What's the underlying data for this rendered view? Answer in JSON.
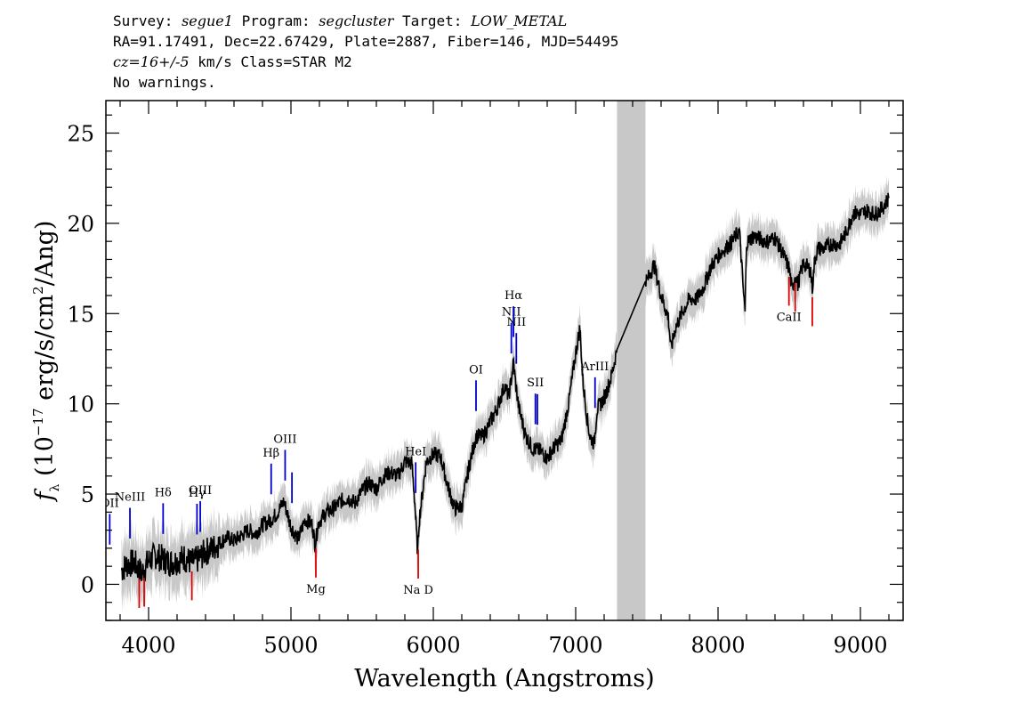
{
  "header": {
    "survey_label": "Survey:",
    "survey": "segue1",
    "program_label": "Program:",
    "program": "segcluster",
    "target_label": "Target:",
    "target": "LOW_METAL",
    "line2": "RA=91.17491, Dec=22.67429, Plate=2887, Fiber=146, MJD=54495",
    "cz": "cz=16+/-5",
    "cz_units": "km/s Class=STAR M2",
    "line4": "No warnings."
  },
  "chart_data": {
    "type": "line",
    "xlabel": "Wavelength (Angstroms)",
    "ylabel": "f_λ (10^-17 erg/s/cm^2/Ang)",
    "xlim": [
      3700,
      9300
    ],
    "ylim": [
      -2,
      26.8
    ],
    "xticks": [
      4000,
      5000,
      6000,
      7000,
      8000,
      9000
    ],
    "yticks": [
      0,
      5,
      10,
      15,
      20,
      25
    ],
    "grid": false,
    "masked_region": [
      7290,
      7490
    ],
    "colors": {
      "flux": "#000000",
      "error_band": "#c8c8c8",
      "emission": "#0000cc",
      "absorption": "#dd0000"
    },
    "series": [
      {
        "style": "flux",
        "x": [
          3810,
          3850,
          3900,
          3950,
          4000,
          4050,
          4100,
          4150,
          4200,
          4250,
          4300,
          4350,
          4400,
          4450,
          4500,
          4550,
          4600,
          4650,
          4700,
          4750,
          4800,
          4850,
          4900,
          4950,
          5000,
          5050,
          5100,
          5150,
          5170,
          5190,
          5200,
          5250,
          5300,
          5350,
          5400,
          5450,
          5500,
          5550,
          5600,
          5650,
          5700,
          5750,
          5800,
          5850,
          5870,
          5890,
          5900,
          5950,
          6000,
          6050,
          6100,
          6150,
          6200,
          6250,
          6300,
          6350,
          6400,
          6450,
          6500,
          6530,
          6550,
          6563,
          6580,
          6600,
          6650,
          6700,
          6750,
          6800,
          6850,
          6900,
          6950,
          7000,
          7030,
          7050,
          7080,
          7100,
          7130,
          7150,
          7200,
          7250,
          7290,
          7490,
          7500,
          7550,
          7600,
          7650,
          7670,
          7700,
          7750,
          7800,
          7850,
          7900,
          7950,
          8000,
          8050,
          8100,
          8150,
          8180,
          8190,
          8200,
          8250,
          8300,
          8350,
          8400,
          8450,
          8500,
          8520,
          8542,
          8560,
          8600,
          8650,
          8662,
          8680,
          8700,
          8750,
          8800,
          8850,
          8900,
          8950,
          9000,
          9050,
          9100,
          9150,
          9200
        ],
        "y": [
          0.8,
          1.1,
          1.2,
          0.6,
          1.3,
          1.6,
          1.4,
          1.2,
          1.3,
          1.5,
          1.2,
          1.4,
          1.8,
          2.0,
          2.3,
          2.6,
          2.4,
          2.7,
          3.0,
          2.8,
          3.3,
          3.5,
          3.9,
          4.6,
          3.2,
          2.5,
          3.6,
          3.3,
          2.2,
          3.3,
          3.5,
          4.0,
          4.2,
          4.6,
          4.8,
          4.5,
          5.2,
          5.6,
          5.3,
          6.0,
          6.2,
          6.0,
          6.8,
          6.7,
          4.5,
          1.7,
          3.5,
          6.8,
          7.2,
          7.1,
          5.5,
          4.2,
          4.3,
          6.5,
          8.2,
          8.2,
          9.0,
          9.8,
          11.0,
          10.4,
          11.5,
          12.3,
          11.0,
          9.8,
          8.2,
          7.5,
          7.4,
          7.0,
          7.6,
          8.0,
          10.0,
          12.8,
          14.2,
          11.3,
          9.2,
          8.2,
          7.8,
          9.7,
          10.3,
          11.5,
          13.0,
          17.0,
          16.8,
          17.7,
          16.0,
          14.8,
          13.0,
          14.2,
          15.1,
          15.8,
          15.8,
          16.5,
          17.6,
          18.2,
          18.6,
          19.0,
          19.6,
          16.0,
          15.1,
          18.9,
          19.3,
          19.1,
          19.0,
          19.2,
          18.4,
          17.5,
          16.3,
          17.2,
          16.6,
          17.8,
          17.4,
          16.4,
          18.0,
          18.6,
          18.6,
          18.9,
          18.8,
          19.5,
          20.6,
          20.5,
          20.7,
          20.5,
          20.8,
          21.4
        ]
      }
    ],
    "emission_lines": [
      {
        "label": "OII",
        "wl": 3727
      },
      {
        "label": "NeIII",
        "wl": 3869
      },
      {
        "label": "Hδ",
        "wl": 4102
      },
      {
        "label": "Hγ",
        "wl": 4340
      },
      {
        "label": "OIII",
        "wl": 4363
      },
      {
        "label": "Hβ",
        "wl": 4861
      },
      {
        "label": "OIII",
        "wl": 4959
      },
      {
        "label": "",
        "wl": 5007
      },
      {
        "label": "HeI",
        "wl": 5876
      },
      {
        "label": "OI",
        "wl": 6300
      },
      {
        "label": "NII",
        "wl": 6548
      },
      {
        "label": "Hα",
        "wl": 6563
      },
      {
        "label": "NII",
        "wl": 6583
      },
      {
        "label": "SII",
        "wl": 6717
      },
      {
        "label": "",
        "wl": 6731
      },
      {
        "label": "ArIII",
        "wl": 7136
      }
    ],
    "absorption_lines": [
      {
        "label": "",
        "wl": 3934
      },
      {
        "label": "",
        "wl": 3969
      },
      {
        "label": "",
        "wl": 4304
      },
      {
        "label": "Mg",
        "wl": 5175
      },
      {
        "label": "Na D",
        "wl": 5894
      },
      {
        "label": "CaII",
        "wl": 8498
      },
      {
        "label": "",
        "wl": 8542
      },
      {
        "label": "",
        "wl": 8662
      }
    ]
  }
}
